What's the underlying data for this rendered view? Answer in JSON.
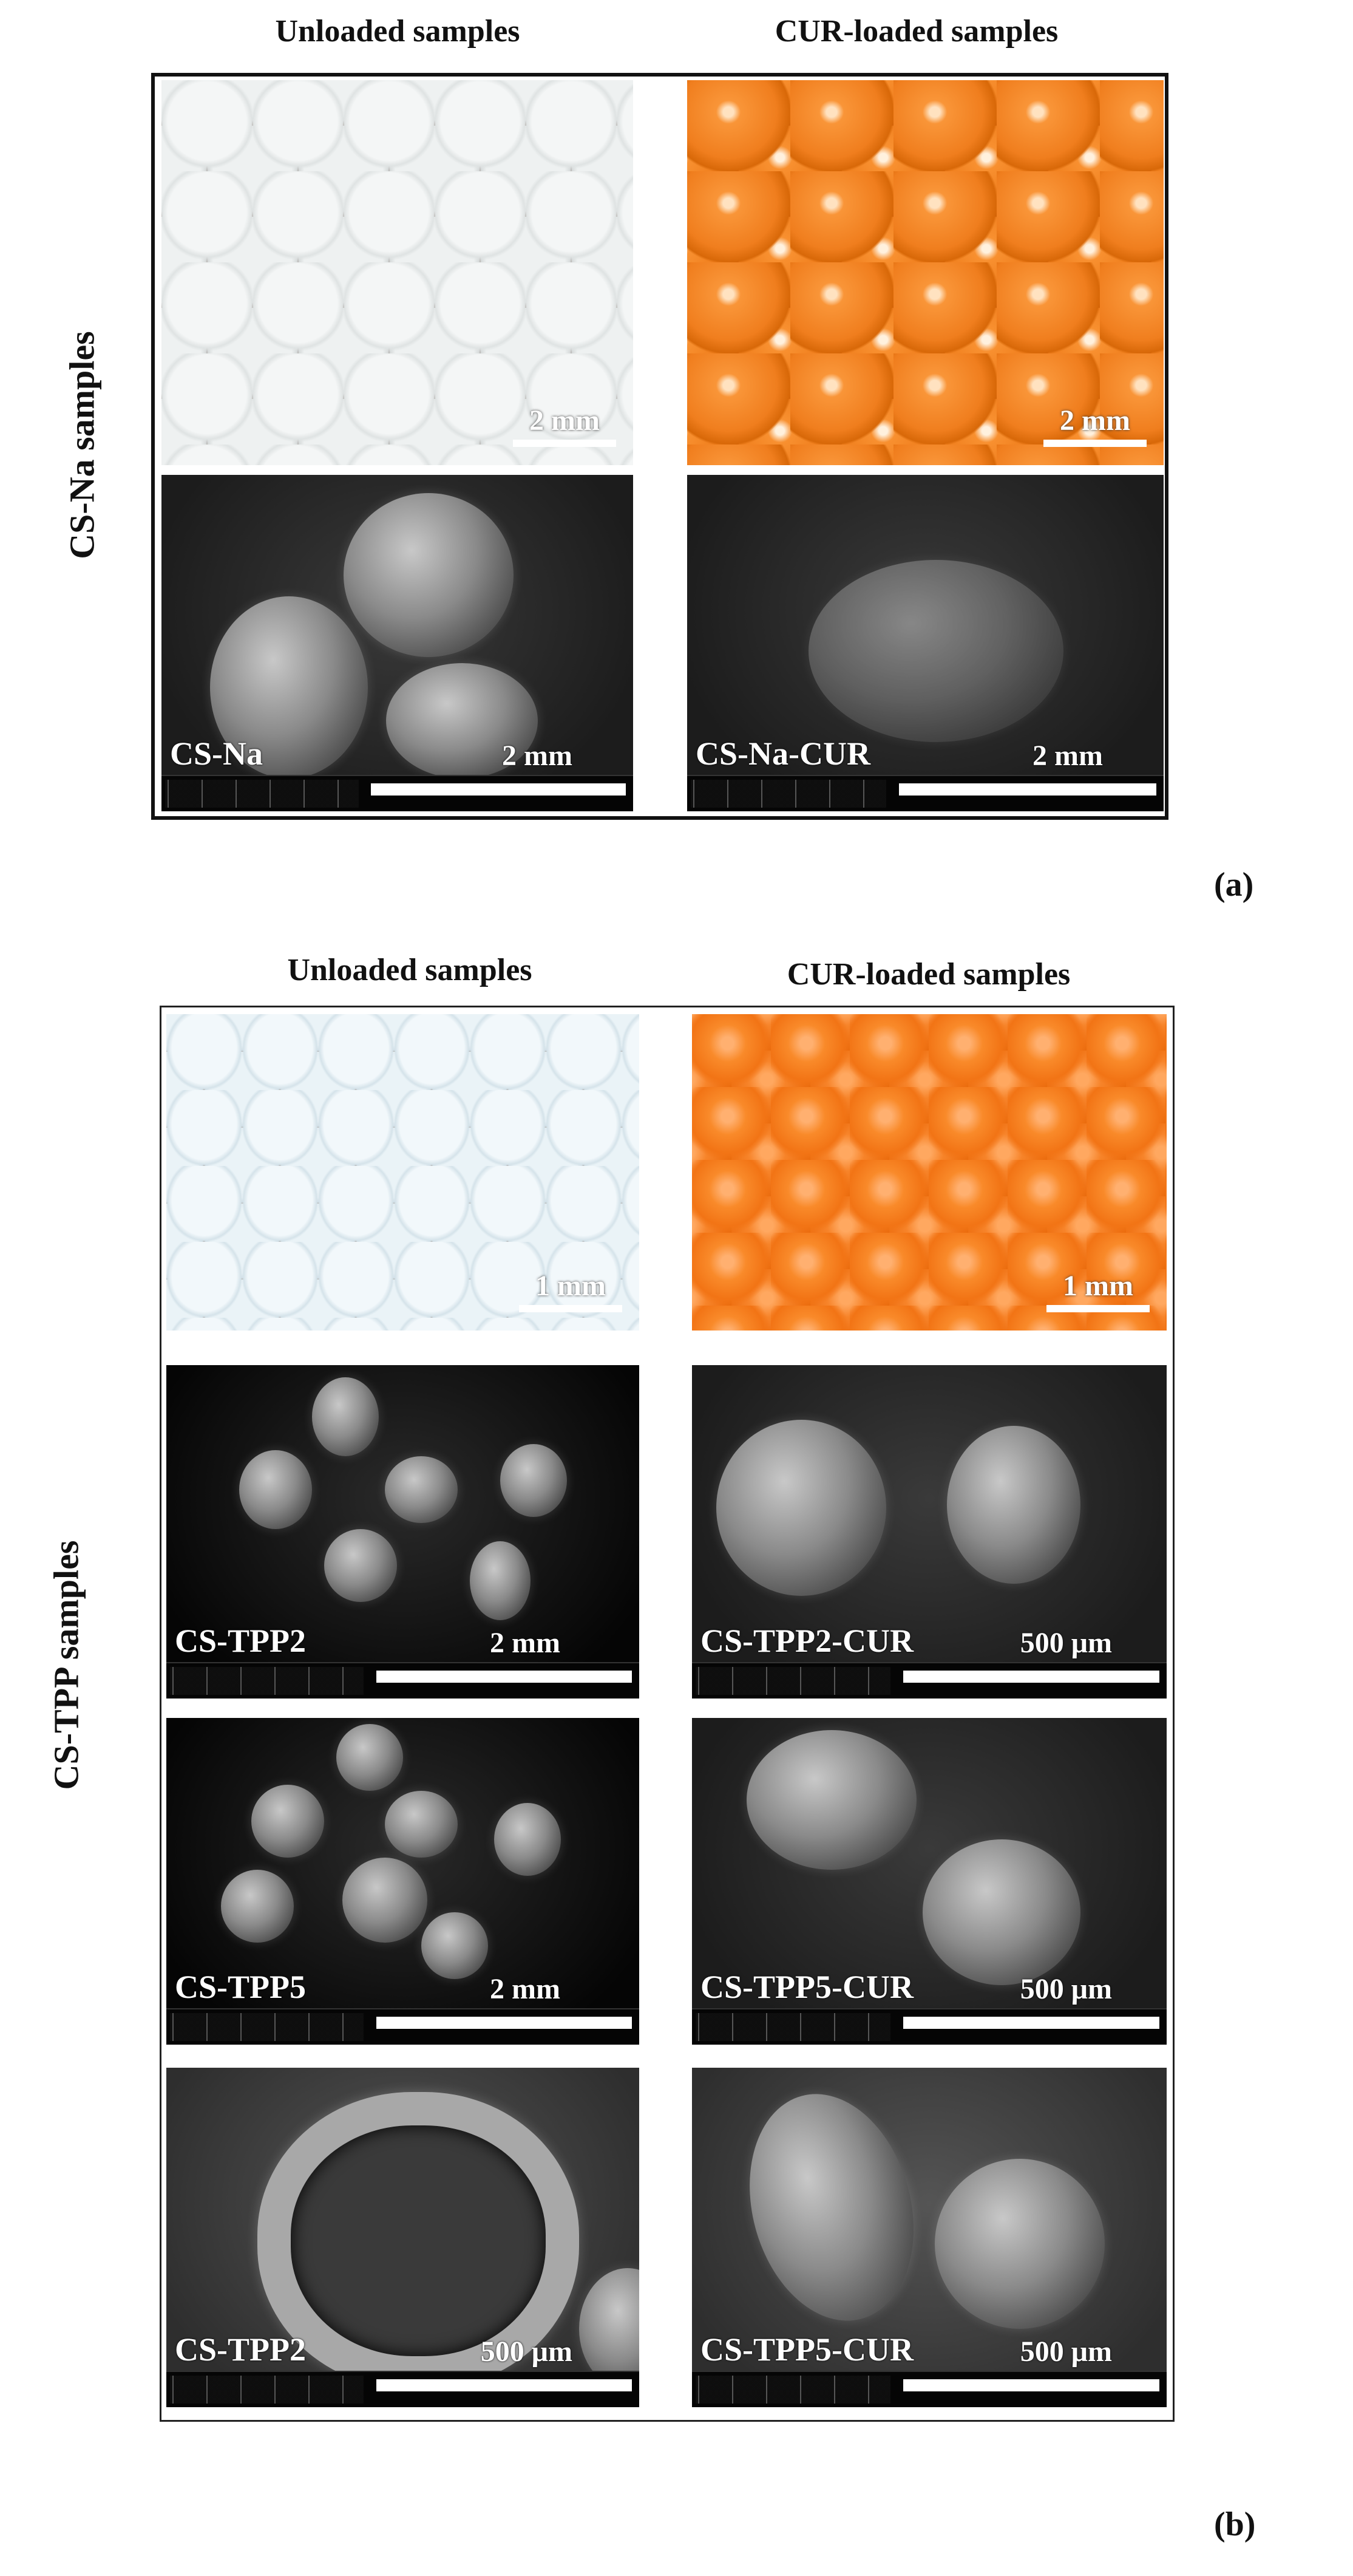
{
  "panel_a": {
    "label": "(a)",
    "row_label": "CS-Na samples",
    "col_titles": [
      "Unloaded samples",
      "CUR-loaded samples"
    ],
    "photos": [
      {
        "scale": "2 mm",
        "sample": "unloaded beads",
        "color": "#eef1f1"
      },
      {
        "scale": "2 mm",
        "sample": "CUR-loaded beads",
        "color": "#f07e1e"
      }
    ],
    "sem": [
      {
        "name": "CS-Na",
        "scale": "2 mm"
      },
      {
        "name": "CS-Na-CUR",
        "scale": "2 mm"
      }
    ]
  },
  "panel_b": {
    "label": "(b)",
    "row_label": "CS-TPP samples",
    "col_titles": [
      "Unloaded samples",
      "CUR-loaded samples"
    ],
    "photos": [
      {
        "scale": "1 mm",
        "sample": "unloaded beads",
        "color": "#eaf3f7"
      },
      {
        "scale": "1 mm",
        "sample": "CUR-loaded beads",
        "color": "#f27415"
      }
    ],
    "sem": [
      {
        "name": "CS-TPP2",
        "scale": "2 mm"
      },
      {
        "name": "CS-TPP2-CUR",
        "scale": "500 μm"
      },
      {
        "name": "CS-TPP5",
        "scale": "2 mm"
      },
      {
        "name": "CS-TPP5-CUR",
        "scale": "500 μm"
      },
      {
        "name": "CS-TPP2",
        "scale": "500 μm"
      },
      {
        "name": "CS-TPP5-CUR",
        "scale": "500 μm"
      }
    ]
  }
}
